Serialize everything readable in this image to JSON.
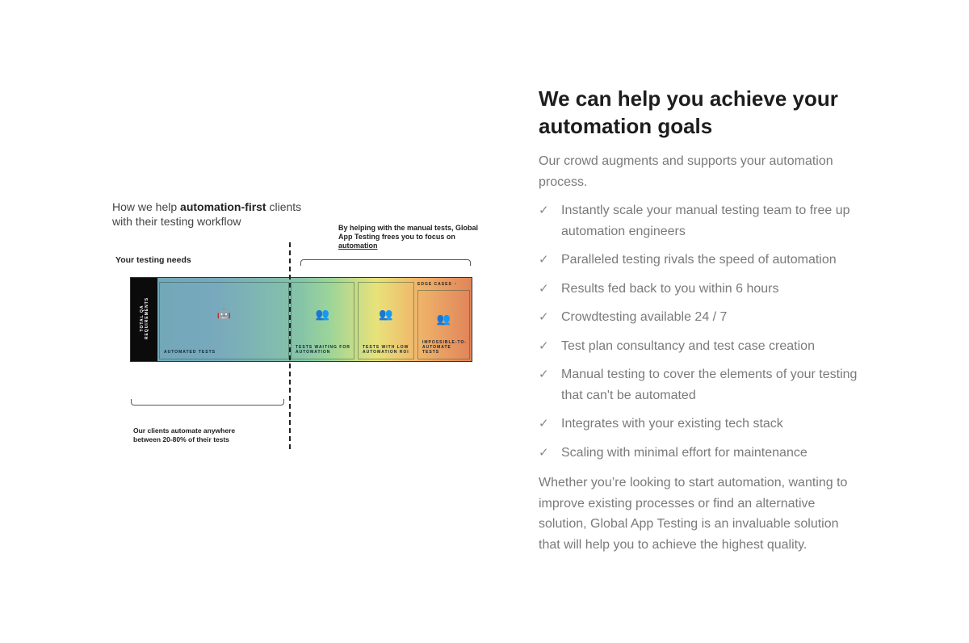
{
  "diagram": {
    "title_pre": "How we help ",
    "title_bold": "automation-first",
    "title_post": " clients with their testing workflow",
    "needs": "Your testing needs",
    "helping_pre": "By helping with the manual tests, Global App Testing frees you to focus on ",
    "helping_link": "automation",
    "strip": "TOTAL QA REQUIREMENTS",
    "boxes": [
      "AUTOMATED TESTS",
      "TESTS WAITING FOR AUTOMATION",
      "TESTS WITH LOW AUTOMATION ROI",
      "IMPOSSIBLE-TO-AUTOMATE TESTS"
    ],
    "edge_cases": "EDGE CASES",
    "clients": "Our clients automate anywhere between 20-80% of their tests"
  },
  "content": {
    "heading": "We can help you achieve your automation goals",
    "intro": "Our crowd augments and supports your automation process.",
    "items": [
      "Instantly scale your manual testing team to free up automation engineers",
      "Paralleled testing rivals the speed of automation",
      "Results fed back to you within 6 hours",
      "Crowdtesting available 24 / 7",
      "Test plan consultancy and test case creation",
      "Manual testing to cover the elements of your testing that can't be automated",
      "Integrates with your existing tech stack",
      "Scaling with minimal effort for maintenance"
    ],
    "outro": "Whether you’re looking to start automation, wanting to improve existing processes or find an alternative solution, Global App Testing is an invaluable solution that will help you to achieve the highest quality."
  }
}
